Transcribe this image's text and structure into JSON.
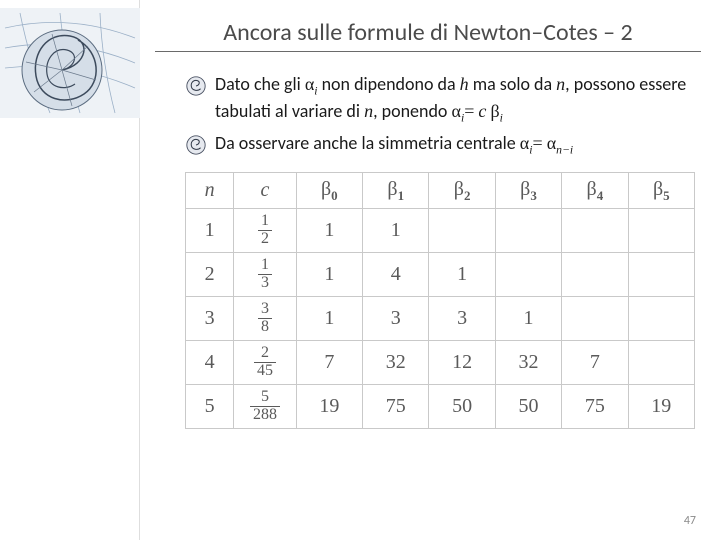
{
  "title": "Ancora sulle formule di Newton–Cotes – 2",
  "bullets": {
    "b1": {
      "pre": "Dato che gli ",
      "a1": " non dipendono da ",
      "a2": " ma solo da ",
      "a3": ", possono essere tabulati al variare di ",
      "a4": ", ponendo "
    },
    "b2": {
      "pre": "Da osservare anche la simmetria centrale "
    }
  },
  "sym": {
    "alpha": "α",
    "beta": "β",
    "h": "h",
    "n": "n",
    "c": "c",
    "i": "i",
    "eq": "=",
    "minus": "−"
  },
  "table": {
    "headers": {
      "n": "n",
      "c": "c"
    },
    "beta_indices": [
      "0",
      "1",
      "2",
      "3",
      "4",
      "5"
    ],
    "rows": [
      {
        "n": "1",
        "c_num": "1",
        "c_den": "2",
        "b": [
          "1",
          "1",
          "",
          "",
          "",
          ""
        ]
      },
      {
        "n": "2",
        "c_num": "1",
        "c_den": "3",
        "b": [
          "1",
          "4",
          "1",
          "",
          "",
          ""
        ]
      },
      {
        "n": "3",
        "c_num": "3",
        "c_den": "8",
        "b": [
          "1",
          "3",
          "3",
          "1",
          "",
          ""
        ]
      },
      {
        "n": "4",
        "c_num": "2",
        "c_den": "45",
        "b": [
          "7",
          "32",
          "12",
          "32",
          "7",
          ""
        ]
      },
      {
        "n": "5",
        "c_num": "5",
        "c_den": "288",
        "b": [
          "19",
          "75",
          "50",
          "50",
          "75",
          "19"
        ]
      }
    ]
  },
  "page_number": "47"
}
